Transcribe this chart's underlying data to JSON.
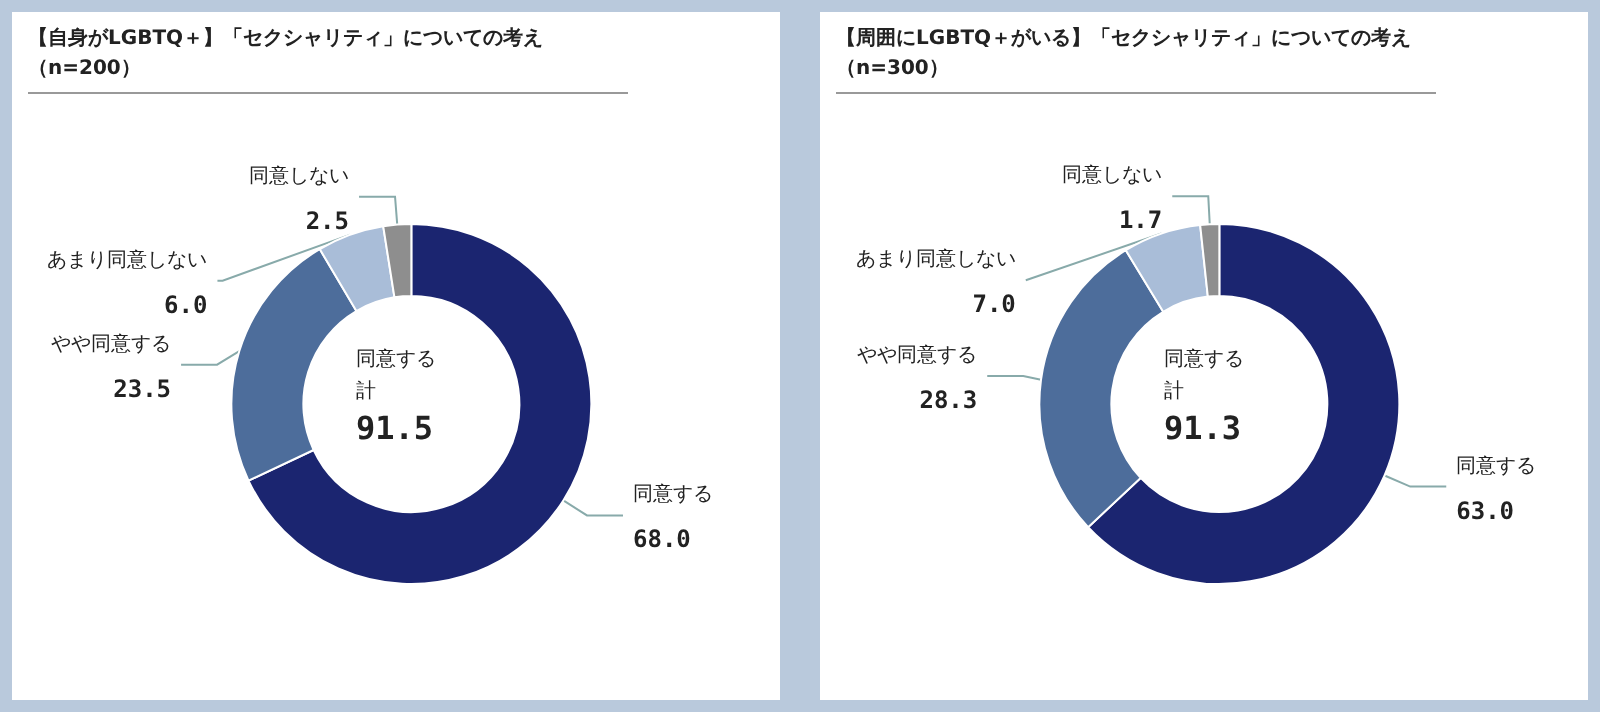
{
  "chart_data": [
    {
      "type": "donut",
      "title": "【自身がLGBTQ＋】「セクシャリティ」についての考え（n=200）",
      "categories": [
        "同意する",
        "やや同意する",
        "あまり同意しない",
        "同意しない"
      ],
      "values": [
        68.0,
        23.5,
        6.0,
        2.5
      ],
      "value_labels": [
        "68.0",
        "23.5",
        "6.0",
        "2.5"
      ],
      "colors": [
        "#1b2570",
        "#4d6d9b",
        "#a9bdd8",
        "#8e8e8e"
      ],
      "annotations": [
        "同意する",
        "計",
        "91.5"
      ]
    },
    {
      "type": "donut",
      "title": "【周囲にLGBTQ＋がいる】「セクシャリティ」についての考え（n=300）",
      "categories": [
        "同意する",
        "やや同意する",
        "あまり同意しない",
        "同意しない"
      ],
      "values": [
        63.0,
        28.3,
        7.0,
        1.7
      ],
      "value_labels": [
        "63.0",
        "28.3",
        "7.0",
        "1.7"
      ],
      "colors": [
        "#1b2570",
        "#4d6d9b",
        "#a9bdd8",
        "#8e8e8e"
      ],
      "annotations": [
        "同意する",
        "計",
        "91.3"
      ]
    }
  ]
}
